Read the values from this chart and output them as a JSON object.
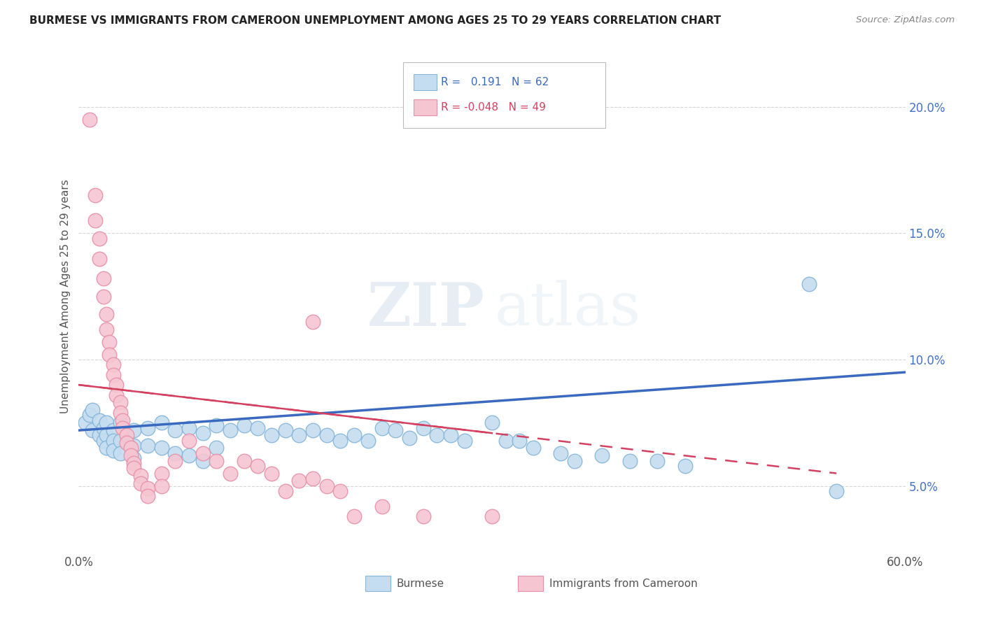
{
  "title": "BURMESE VS IMMIGRANTS FROM CAMEROON UNEMPLOYMENT AMONG AGES 25 TO 29 YEARS CORRELATION CHART",
  "source": "Source: ZipAtlas.com",
  "ylabel": "Unemployment Among Ages 25 to 29 years",
  "ytick_labels": [
    "5.0%",
    "10.0%",
    "15.0%",
    "20.0%"
  ],
  "ytick_values": [
    0.05,
    0.1,
    0.15,
    0.2
  ],
  "xlim": [
    0.0,
    0.6
  ],
  "ylim": [
    0.025,
    0.225
  ],
  "watermark_zip": "ZIP",
  "watermark_atlas": "atlas",
  "legend": {
    "blue_label": "Burmese",
    "pink_label": "Immigrants from Cameroon",
    "blue_R": "0.191",
    "blue_N": "62",
    "pink_R": "-0.048",
    "pink_N": "49"
  },
  "blue_color": "#c5ddf0",
  "blue_edge": "#85b5d9",
  "pink_color": "#f5c5d2",
  "pink_edge": "#e890a8",
  "blue_line_color": "#3a6abf",
  "pink_line_color": "#d44060",
  "blue_scatter": [
    [
      0.005,
      0.075
    ],
    [
      0.008,
      0.078
    ],
    [
      0.01,
      0.08
    ],
    [
      0.01,
      0.072
    ],
    [
      0.015,
      0.076
    ],
    [
      0.015,
      0.07
    ],
    [
      0.018,
      0.073
    ],
    [
      0.018,
      0.068
    ],
    [
      0.02,
      0.075
    ],
    [
      0.02,
      0.07
    ],
    [
      0.02,
      0.065
    ],
    [
      0.025,
      0.072
    ],
    [
      0.025,
      0.068
    ],
    [
      0.025,
      0.064
    ],
    [
      0.03,
      0.075
    ],
    [
      0.03,
      0.068
    ],
    [
      0.03,
      0.063
    ],
    [
      0.04,
      0.072
    ],
    [
      0.04,
      0.066
    ],
    [
      0.04,
      0.061
    ],
    [
      0.05,
      0.073
    ],
    [
      0.05,
      0.066
    ],
    [
      0.06,
      0.075
    ],
    [
      0.06,
      0.065
    ],
    [
      0.07,
      0.072
    ],
    [
      0.07,
      0.063
    ],
    [
      0.08,
      0.073
    ],
    [
      0.08,
      0.062
    ],
    [
      0.09,
      0.071
    ],
    [
      0.09,
      0.06
    ],
    [
      0.1,
      0.074
    ],
    [
      0.1,
      0.065
    ],
    [
      0.11,
      0.072
    ],
    [
      0.12,
      0.074
    ],
    [
      0.13,
      0.073
    ],
    [
      0.14,
      0.07
    ],
    [
      0.15,
      0.072
    ],
    [
      0.16,
      0.07
    ],
    [
      0.17,
      0.072
    ],
    [
      0.18,
      0.07
    ],
    [
      0.19,
      0.068
    ],
    [
      0.2,
      0.07
    ],
    [
      0.21,
      0.068
    ],
    [
      0.22,
      0.073
    ],
    [
      0.23,
      0.072
    ],
    [
      0.24,
      0.069
    ],
    [
      0.25,
      0.073
    ],
    [
      0.26,
      0.07
    ],
    [
      0.27,
      0.07
    ],
    [
      0.28,
      0.068
    ],
    [
      0.3,
      0.075
    ],
    [
      0.31,
      0.068
    ],
    [
      0.32,
      0.068
    ],
    [
      0.33,
      0.065
    ],
    [
      0.35,
      0.063
    ],
    [
      0.36,
      0.06
    ],
    [
      0.38,
      0.062
    ],
    [
      0.4,
      0.06
    ],
    [
      0.42,
      0.06
    ],
    [
      0.44,
      0.058
    ],
    [
      0.53,
      0.13
    ],
    [
      0.55,
      0.048
    ]
  ],
  "pink_scatter": [
    [
      0.008,
      0.195
    ],
    [
      0.012,
      0.165
    ],
    [
      0.012,
      0.155
    ],
    [
      0.015,
      0.148
    ],
    [
      0.015,
      0.14
    ],
    [
      0.018,
      0.132
    ],
    [
      0.018,
      0.125
    ],
    [
      0.02,
      0.118
    ],
    [
      0.02,
      0.112
    ],
    [
      0.022,
      0.107
    ],
    [
      0.022,
      0.102
    ],
    [
      0.025,
      0.098
    ],
    [
      0.025,
      0.094
    ],
    [
      0.027,
      0.09
    ],
    [
      0.027,
      0.086
    ],
    [
      0.03,
      0.083
    ],
    [
      0.03,
      0.079
    ],
    [
      0.032,
      0.076
    ],
    [
      0.032,
      0.073
    ],
    [
      0.035,
      0.07
    ],
    [
      0.035,
      0.067
    ],
    [
      0.038,
      0.065
    ],
    [
      0.038,
      0.062
    ],
    [
      0.04,
      0.059
    ],
    [
      0.04,
      0.057
    ],
    [
      0.045,
      0.054
    ],
    [
      0.045,
      0.051
    ],
    [
      0.05,
      0.049
    ],
    [
      0.05,
      0.046
    ],
    [
      0.06,
      0.055
    ],
    [
      0.06,
      0.05
    ],
    [
      0.07,
      0.06
    ],
    [
      0.08,
      0.068
    ],
    [
      0.09,
      0.063
    ],
    [
      0.1,
      0.06
    ],
    [
      0.11,
      0.055
    ],
    [
      0.12,
      0.06
    ],
    [
      0.13,
      0.058
    ],
    [
      0.14,
      0.055
    ],
    [
      0.15,
      0.048
    ],
    [
      0.16,
      0.052
    ],
    [
      0.17,
      0.053
    ],
    [
      0.18,
      0.05
    ],
    [
      0.19,
      0.048
    ],
    [
      0.2,
      0.038
    ],
    [
      0.22,
      0.042
    ],
    [
      0.25,
      0.038
    ],
    [
      0.3,
      0.038
    ],
    [
      0.17,
      0.115
    ]
  ],
  "blue_trend": {
    "x_start": 0.0,
    "x_end": 0.6,
    "y_start": 0.072,
    "y_end": 0.095
  },
  "pink_trend": {
    "x_start": 0.0,
    "x_end": 0.55,
    "y_start": 0.09,
    "y_end": 0.055
  }
}
